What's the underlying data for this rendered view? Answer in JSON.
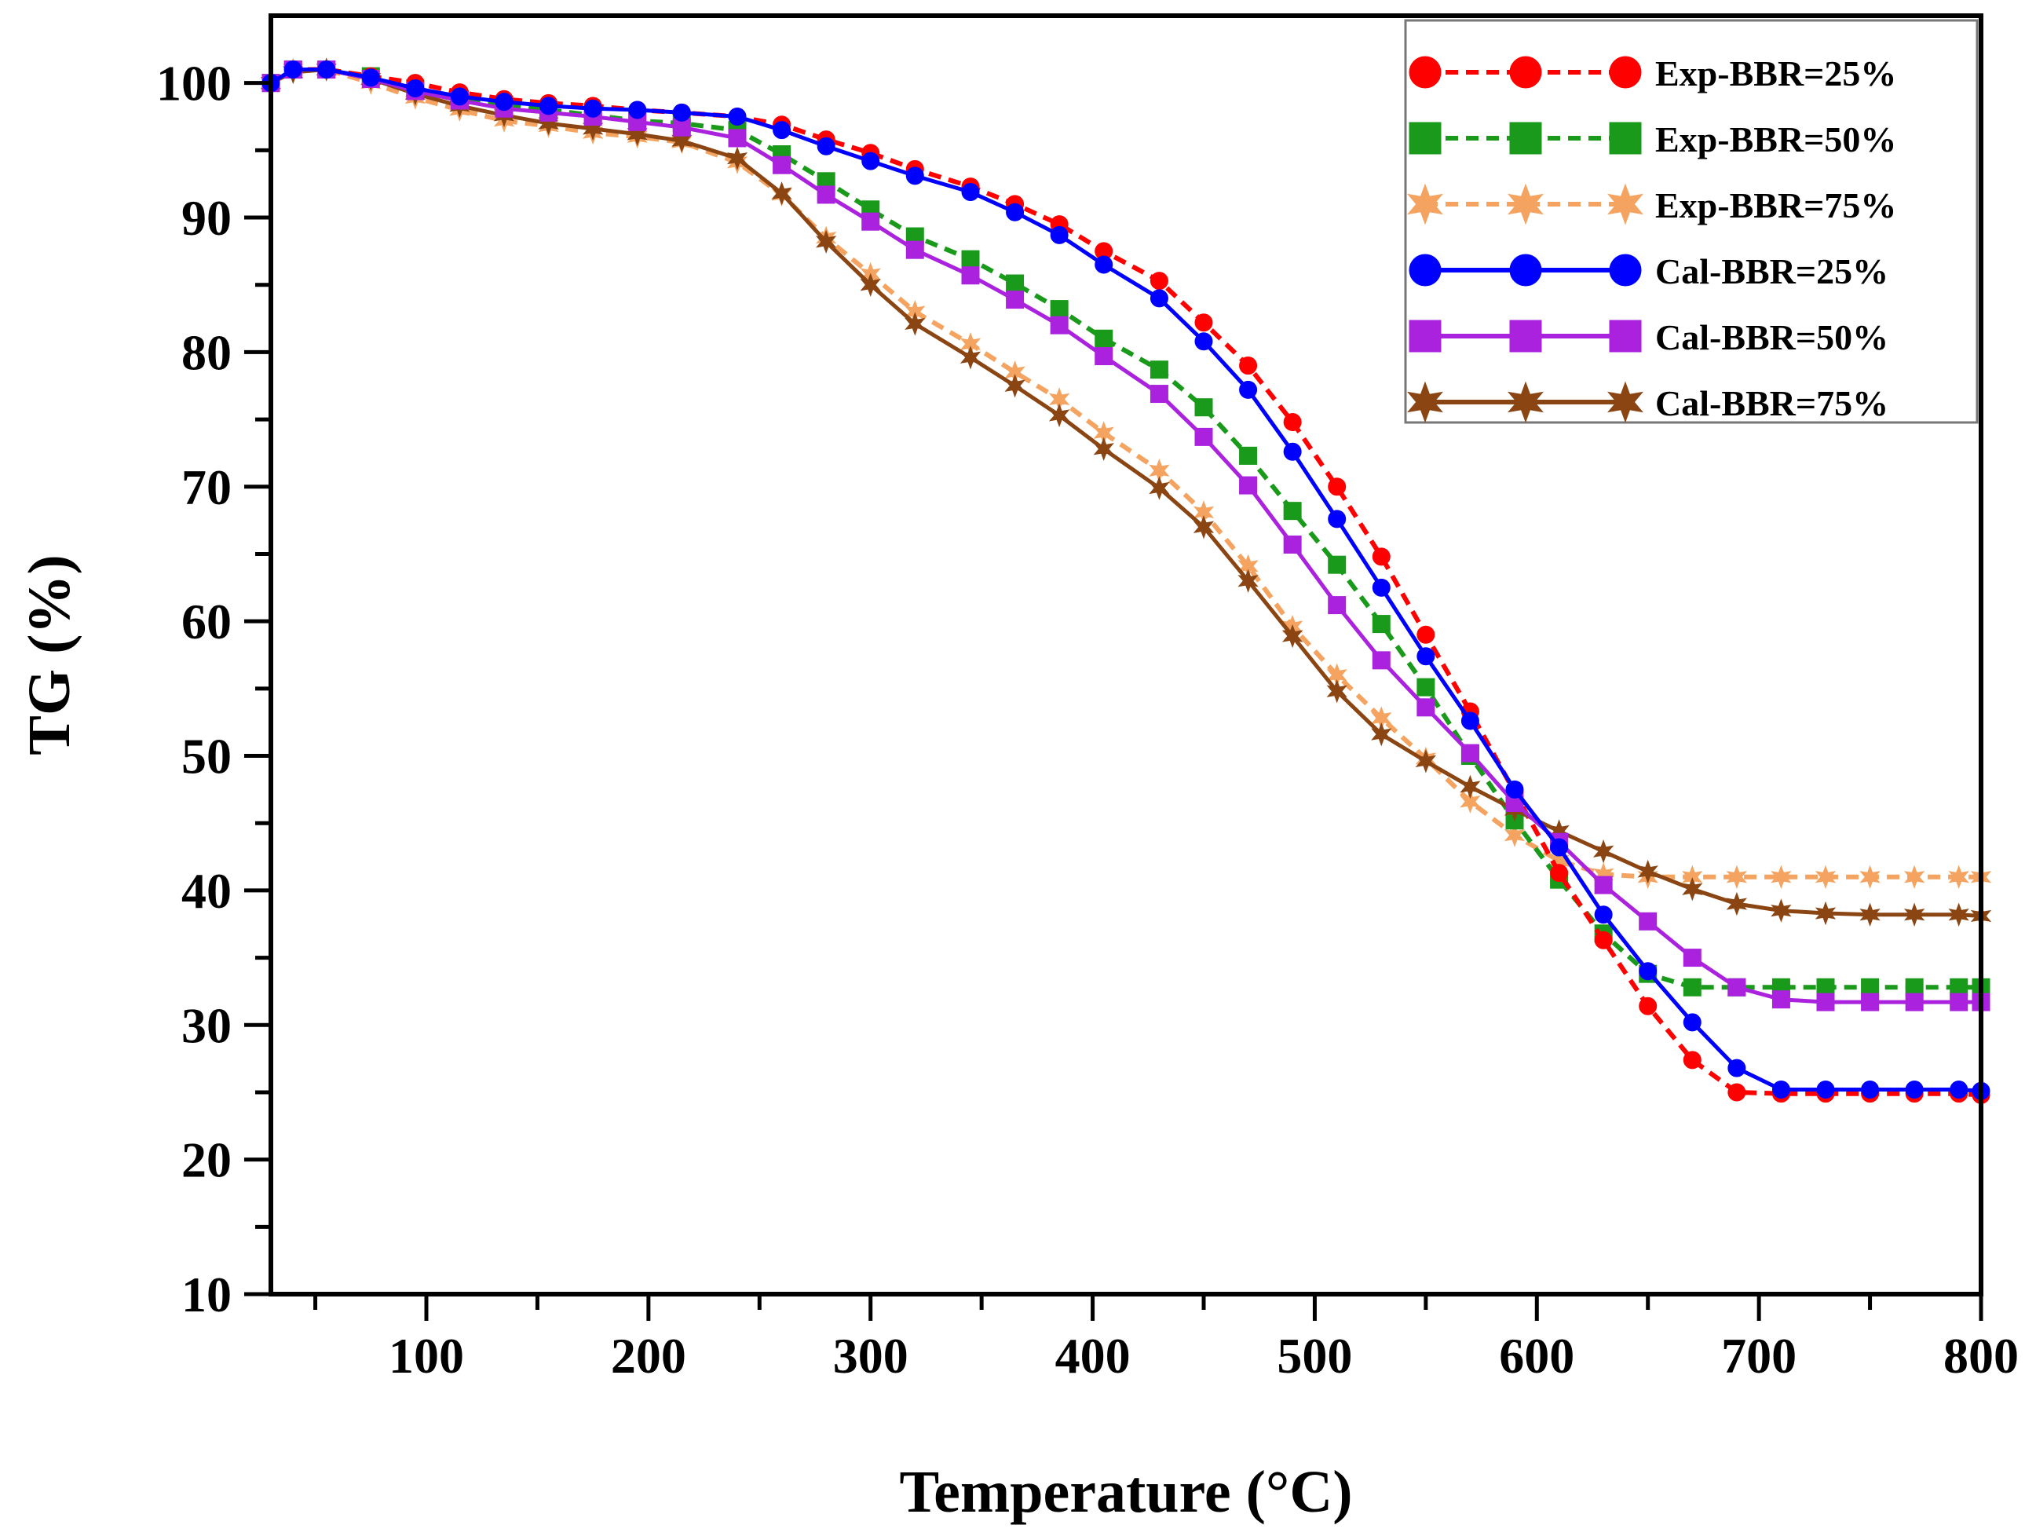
{
  "chart_data": {
    "type": "line",
    "title": "",
    "xlabel": "Temperature (°C)",
    "ylabel": "TG (%)",
    "xlim": [
      30,
      800
    ],
    "ylim": [
      10,
      105
    ],
    "xticks": [
      100,
      200,
      300,
      400,
      500,
      600,
      700,
      800
    ],
    "yticks": [
      10,
      20,
      30,
      40,
      50,
      60,
      70,
      80,
      90,
      100
    ],
    "legend_position": "top-right",
    "series": [
      {
        "name": "Exp-BBR=25%",
        "color": "#ff0000",
        "line": "dash",
        "marker": "circle",
        "x": [
          30,
          40,
          55,
          75,
          95,
          115,
          135,
          155,
          175,
          195,
          215,
          240,
          260,
          280,
          300,
          320,
          345,
          365,
          385,
          405,
          430,
          450,
          470,
          490,
          510,
          530,
          550,
          570,
          590,
          610,
          630,
          650,
          670,
          690,
          710,
          730,
          750,
          770,
          790,
          800
        ],
        "y": [
          100,
          101,
          101,
          100.5,
          100,
          99.3,
          98.8,
          98.5,
          98.3,
          98,
          97.8,
          97.5,
          96.9,
          95.8,
          94.8,
          93.6,
          92.3,
          91,
          89.5,
          87.5,
          85.3,
          82.2,
          79,
          74.8,
          70,
          64.8,
          59,
          53.3,
          47.3,
          41.3,
          36.3,
          31.4,
          27.4,
          25,
          24.9,
          24.9,
          24.9,
          24.9,
          24.9,
          24.8
        ]
      },
      {
        "name": "Exp-BBR=50%",
        "color": "#1a9a1a",
        "line": "dash",
        "marker": "square",
        "x": [
          30,
          40,
          55,
          75,
          95,
          115,
          135,
          155,
          175,
          195,
          215,
          240,
          260,
          280,
          300,
          320,
          345,
          365,
          385,
          405,
          430,
          450,
          470,
          490,
          510,
          530,
          550,
          570,
          590,
          610,
          630,
          650,
          670,
          690,
          710,
          730,
          750,
          770,
          790,
          800
        ],
        "y": [
          100,
          101,
          101,
          100.5,
          99.6,
          98.8,
          98.4,
          98,
          97.6,
          97.2,
          97,
          96.5,
          94.7,
          92.7,
          90.6,
          88.6,
          86.9,
          85.1,
          83.2,
          81,
          78.7,
          75.9,
          72.3,
          68.2,
          64.2,
          59.8,
          55.1,
          50,
          45.2,
          40.8,
          36.8,
          33.8,
          32.8,
          32.8,
          32.8,
          32.8,
          32.8,
          32.8,
          32.8,
          32.8
        ]
      },
      {
        "name": "Exp-BBR=75%",
        "color": "#f4a460",
        "line": "dash",
        "marker": "star",
        "x": [
          30,
          40,
          55,
          75,
          95,
          115,
          135,
          155,
          175,
          195,
          215,
          240,
          260,
          280,
          300,
          320,
          345,
          365,
          385,
          405,
          430,
          450,
          470,
          490,
          510,
          530,
          550,
          570,
          590,
          610,
          630,
          650,
          670,
          690,
          710,
          730,
          750,
          770,
          790,
          800
        ],
        "y": [
          100,
          101,
          101,
          100,
          98.9,
          98,
          97.2,
          96.8,
          96.3,
          96,
          95.6,
          94.1,
          91.7,
          88.5,
          85.8,
          83,
          80.6,
          78.5,
          76.5,
          74,
          71.2,
          68.1,
          64.1,
          59.6,
          56,
          52.8,
          49.8,
          46.6,
          44.1,
          42.2,
          41.2,
          41,
          41,
          41,
          41,
          41,
          41,
          41,
          41,
          41
        ]
      },
      {
        "name": "Cal-BBR=25%",
        "color": "#0000ff",
        "line": "solid",
        "marker": "circle",
        "x": [
          30,
          40,
          55,
          75,
          95,
          115,
          135,
          155,
          175,
          195,
          215,
          240,
          260,
          280,
          300,
          320,
          345,
          365,
          385,
          405,
          430,
          450,
          470,
          490,
          510,
          530,
          550,
          570,
          590,
          610,
          630,
          650,
          670,
          690,
          710,
          730,
          750,
          770,
          790,
          800
        ],
        "y": [
          100,
          101,
          101,
          100.4,
          99.6,
          99,
          98.6,
          98.3,
          98.1,
          98,
          97.8,
          97.5,
          96.5,
          95.3,
          94.2,
          93.1,
          91.9,
          90.4,
          88.7,
          86.5,
          84,
          80.8,
          77.2,
          72.6,
          67.6,
          62.5,
          57.4,
          52.6,
          47.5,
          43.2,
          38.2,
          34,
          30.2,
          26.8,
          25.2,
          25.2,
          25.2,
          25.2,
          25.2,
          25.1
        ]
      },
      {
        "name": "Cal-BBR=50%",
        "color": "#aa22dd",
        "line": "solid",
        "marker": "square",
        "x": [
          30,
          40,
          55,
          75,
          95,
          115,
          135,
          155,
          175,
          195,
          215,
          240,
          260,
          280,
          300,
          320,
          345,
          365,
          385,
          405,
          430,
          450,
          470,
          490,
          510,
          530,
          550,
          570,
          590,
          610,
          630,
          650,
          670,
          690,
          710,
          730,
          750,
          770,
          790,
          800
        ],
        "y": [
          100,
          101,
          101,
          100.3,
          99.4,
          98.7,
          98.1,
          97.8,
          97.5,
          97.1,
          96.7,
          95.9,
          93.9,
          91.7,
          89.7,
          87.6,
          85.7,
          83.9,
          82,
          79.7,
          76.9,
          73.7,
          70.1,
          65.7,
          61.2,
          57.1,
          53.6,
          50.2,
          46.5,
          43.6,
          40.4,
          37.7,
          35,
          32.8,
          31.9,
          31.7,
          31.7,
          31.7,
          31.7,
          31.7
        ]
      },
      {
        "name": "Cal-BBR=75%",
        "color": "#8b4513",
        "line": "solid",
        "marker": "star",
        "x": [
          30,
          40,
          55,
          75,
          95,
          115,
          135,
          155,
          175,
          195,
          215,
          240,
          260,
          280,
          300,
          320,
          345,
          365,
          385,
          405,
          430,
          450,
          470,
          490,
          510,
          530,
          550,
          570,
          590,
          610,
          630,
          650,
          670,
          690,
          710,
          730,
          750,
          770,
          790,
          800
        ],
        "y": [
          100,
          100.8,
          101,
          100.3,
          99.2,
          98.3,
          97.6,
          97,
          96.6,
          96.2,
          95.7,
          94.4,
          91.8,
          88.2,
          85,
          82.1,
          79.6,
          77.5,
          75.3,
          72.8,
          69.9,
          67,
          63,
          58.9,
          54.8,
          51.6,
          49.6,
          47.7,
          46,
          44.4,
          42.9,
          41.4,
          40.1,
          39,
          38.5,
          38.3,
          38.2,
          38.2,
          38.2,
          38.1
        ]
      }
    ]
  }
}
